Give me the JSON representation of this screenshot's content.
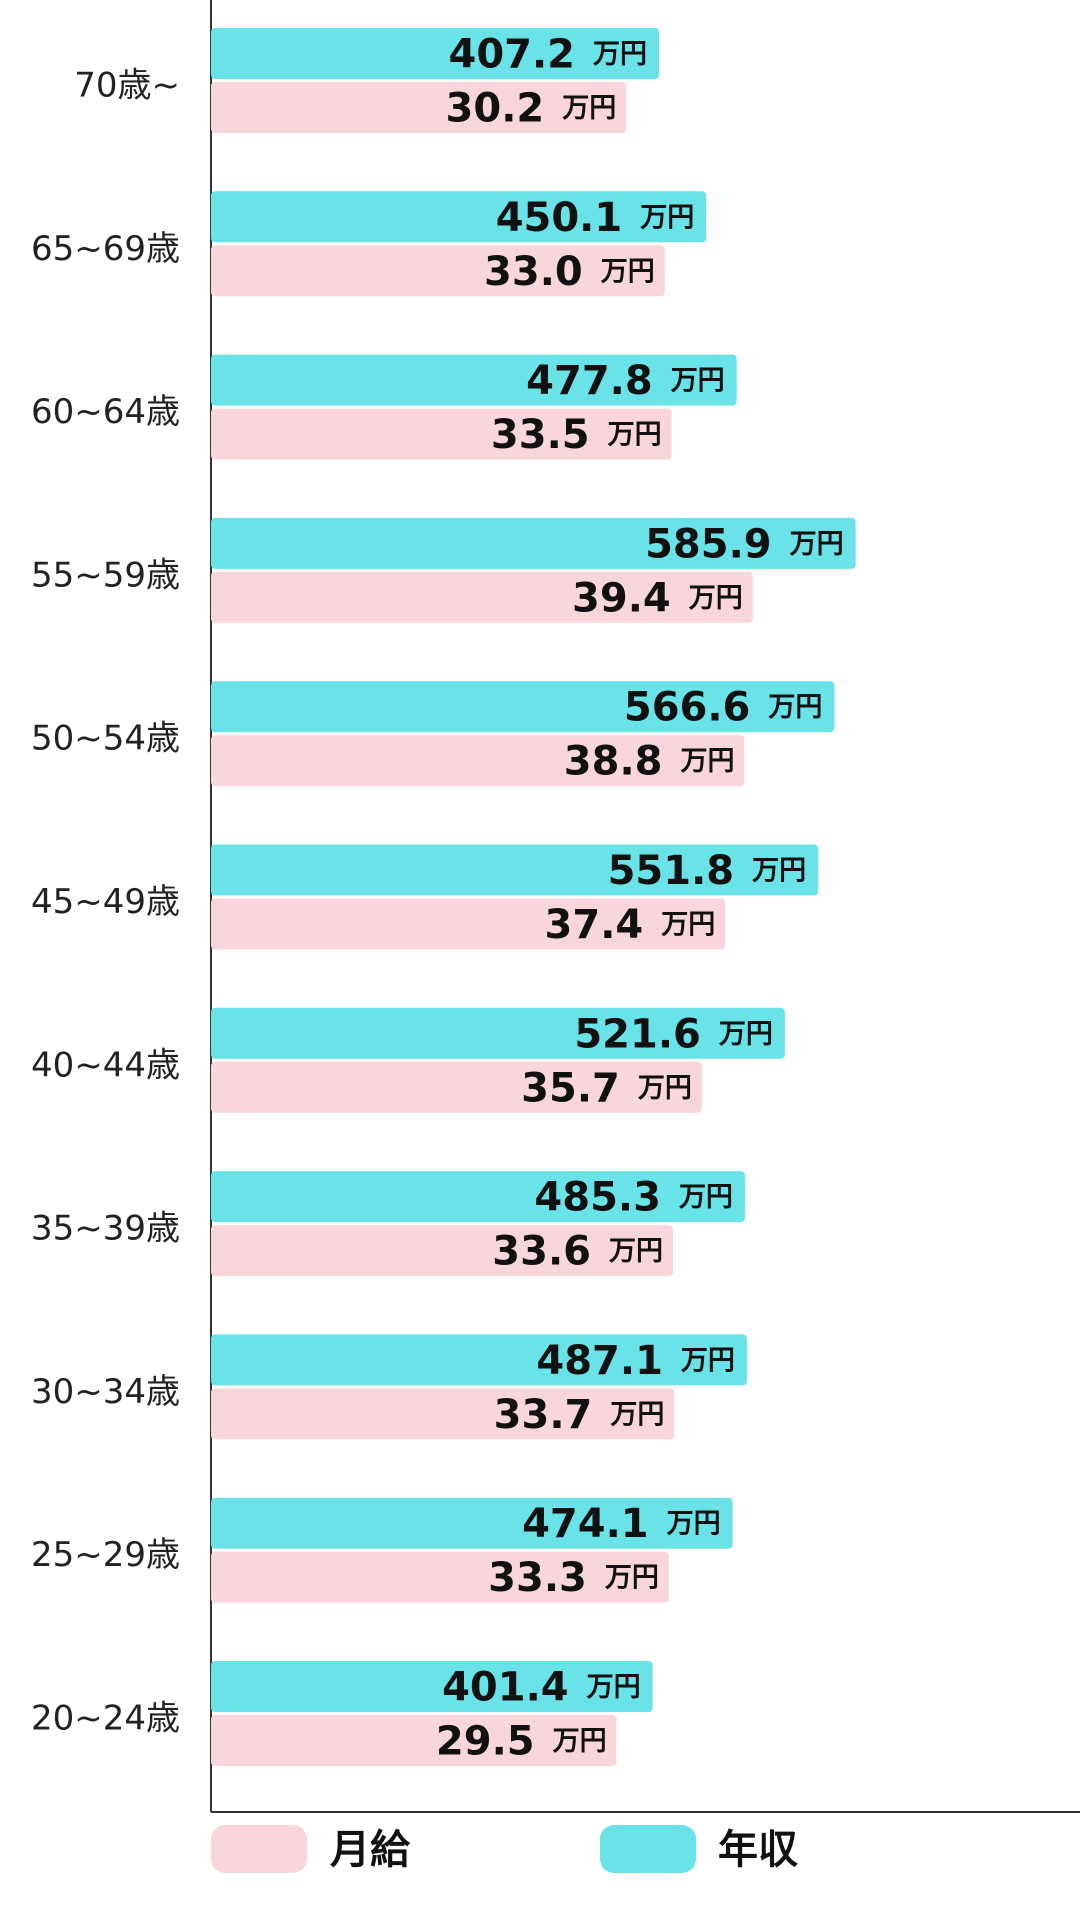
{
  "chart_data": {
    "type": "bar",
    "orientation": "horizontal",
    "categories": [
      "70歳~",
      "65~69歳",
      "60~64歳",
      "55~59歳",
      "50~54歳",
      "45~49歳",
      "40~44歳",
      "35~39歳",
      "30~34歳",
      "25~29歳",
      "20~24歳"
    ],
    "series": [
      {
        "name": "年収",
        "color": "#6ae3e8",
        "values": [
          407.2,
          450.1,
          477.8,
          585.9,
          566.6,
          551.8,
          521.6,
          485.3,
          487.1,
          474.1,
          401.4
        ],
        "labels": [
          "407.2",
          "450.1",
          "477.8",
          "585.9",
          "566.6",
          "551.8",
          "521.6",
          "485.3",
          "487.1",
          "474.1",
          "401.4"
        ]
      },
      {
        "name": "月給",
        "color": "#f9d6dc",
        "values": [
          30.2,
          33.0,
          33.5,
          39.4,
          38.8,
          37.4,
          35.7,
          33.6,
          33.7,
          33.3,
          29.5
        ],
        "labels": [
          "30.2",
          "33.0",
          "33.5",
          "39.4",
          "38.8",
          "37.4",
          "35.7",
          "33.6",
          "33.7",
          "33.3",
          "29.5"
        ]
      }
    ],
    "unit": "万円",
    "legend": [
      "月給",
      "年収"
    ],
    "legend_position": "bottom",
    "grid": false
  }
}
